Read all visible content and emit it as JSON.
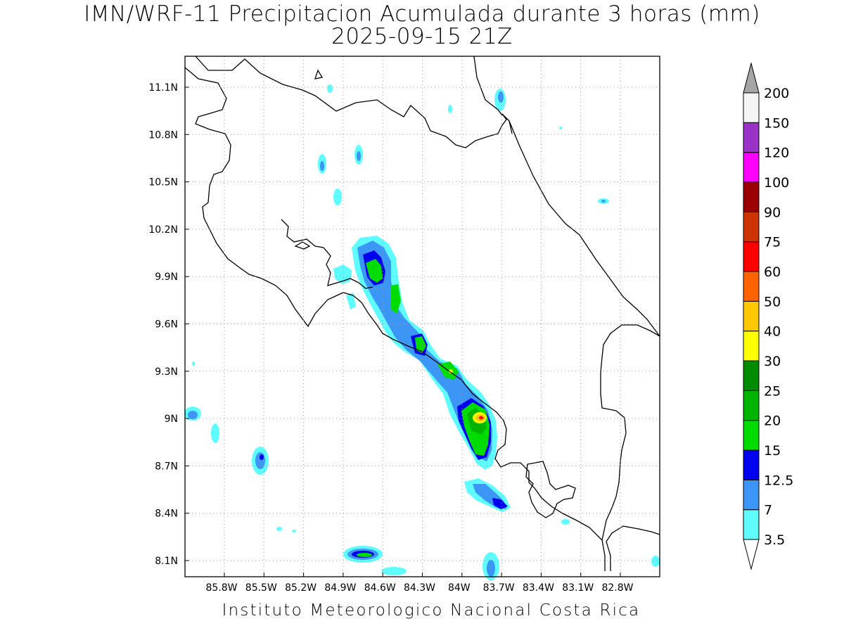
{
  "header": {
    "title": "IMN/WRF-11 Precipitacion Acumulada durante 3 horas (mm)",
    "datetime": "2025-09-15 21Z"
  },
  "footer": {
    "credit": "Instituto Meteorologico Nacional Costa Rica"
  },
  "map": {
    "lon_labels": [
      "85.8W",
      "85.5W",
      "85.2W",
      "84.9W",
      "84.6W",
      "84.3W",
      "84W",
      "83.7W",
      "83.4W",
      "83.1W",
      "82.8W"
    ],
    "lat_labels": [
      "11.1N",
      "10.8N",
      "10.5N",
      "10.2N",
      "9.9N",
      "9.6N",
      "9.3N",
      "9N",
      "8.7N",
      "8.4N",
      "8.1N"
    ],
    "grid": "dotted"
  },
  "legend": {
    "colors": [
      "#5ffcff",
      "#3c96f5",
      "#0000f0",
      "#00dc00",
      "#00b400",
      "#008c00",
      "#ffff00",
      "#ffc800",
      "#ff6400",
      "#ff0000",
      "#cd3300",
      "#9b0000",
      "#ff00ff",
      "#9b32c8",
      "#f5f5f5"
    ],
    "labels": [
      "3.5",
      "7",
      "12.5",
      "15",
      "20",
      "25",
      "30",
      "40",
      "50",
      "60",
      "75",
      "90",
      "100",
      "120",
      "150",
      "200"
    ],
    "over_color": "#a5a5a5"
  }
}
